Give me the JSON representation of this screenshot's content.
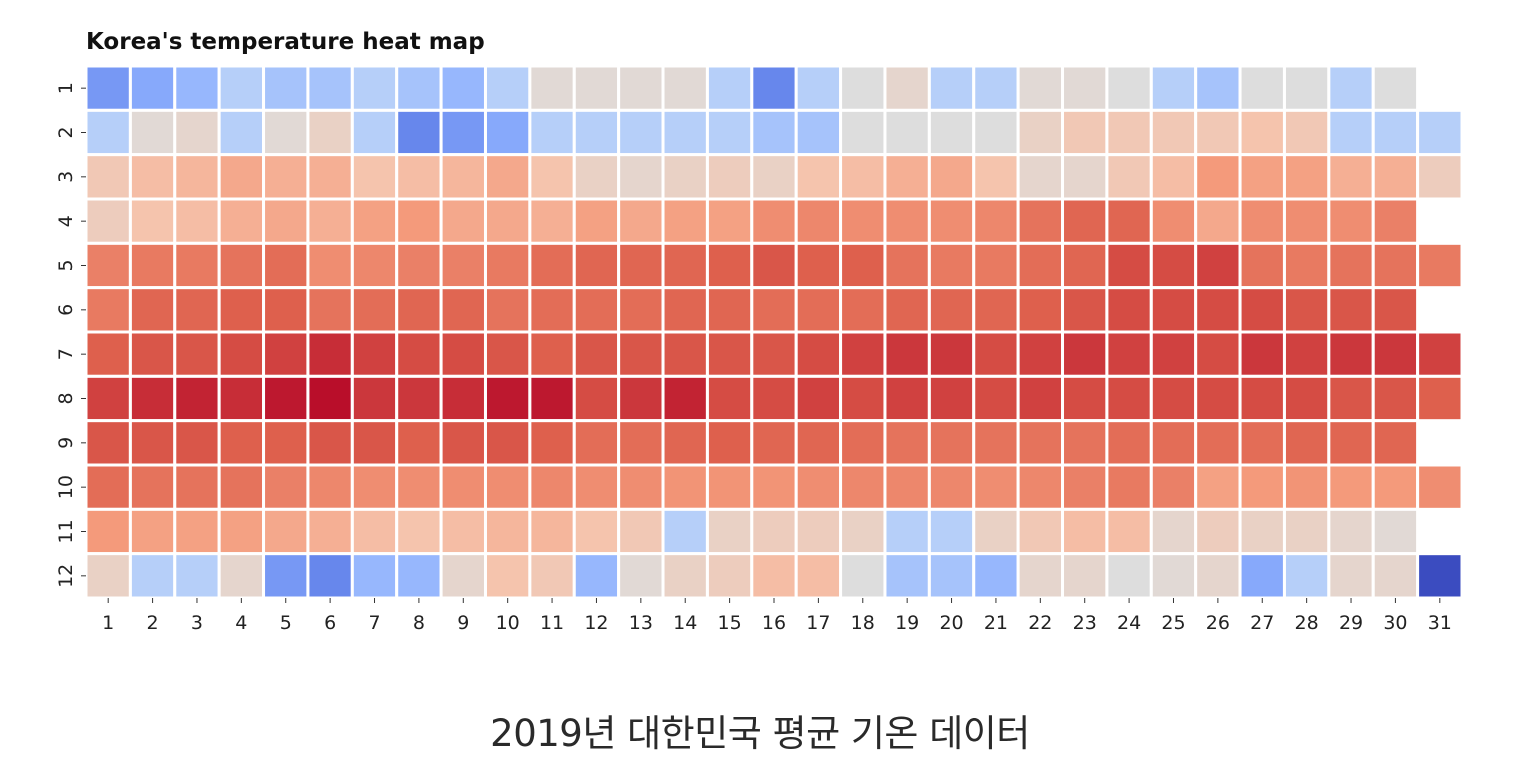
{
  "chart_data": {
    "type": "heatmap",
    "title": "Korea's temperature heat map",
    "x_categories": [
      "1",
      "2",
      "3",
      "4",
      "5",
      "6",
      "7",
      "8",
      "9",
      "10",
      "11",
      "12",
      "13",
      "14",
      "15",
      "16",
      "17",
      "18",
      "19",
      "20",
      "21",
      "22",
      "23",
      "24",
      "25",
      "26",
      "27",
      "28",
      "29",
      "30",
      "31"
    ],
    "y_categories": [
      "1",
      "2",
      "3",
      "4",
      "5",
      "6",
      "7",
      "8",
      "9",
      "10",
      "11",
      "12"
    ],
    "colormap": "coolwarm",
    "center": 0,
    "vlim": [
      -9,
      30
    ],
    "grid": true,
    "colorbar": false,
    "values": [
      [
        -5,
        -4,
        -3,
        -1,
        -2,
        -2,
        -1,
        -2,
        -3,
        -1,
        1,
        1,
        1,
        1,
        -1,
        -6,
        -1,
        0,
        2,
        -1,
        -1,
        1,
        1,
        0,
        -1,
        -2,
        0,
        0,
        -1,
        0,
        null
      ],
      [
        -1,
        1,
        2,
        -1,
        1,
        3,
        -1,
        -6,
        -5,
        -4,
        -1,
        -1,
        -1,
        -1,
        -1,
        -2,
        -2,
        0,
        0,
        0,
        0,
        3,
        5,
        5,
        5,
        5,
        6,
        5,
        -1,
        -1,
        -1
      ],
      [
        5,
        7,
        8,
        10,
        9,
        9,
        6,
        7,
        8,
        10,
        6,
        3,
        2,
        3,
        4,
        3,
        6,
        7,
        9,
        10,
        6,
        2,
        2,
        5,
        7,
        12,
        11,
        11,
        9,
        9,
        4
      ],
      [
        4,
        6,
        7,
        9,
        10,
        9,
        11,
        12,
        10,
        10,
        9,
        11,
        10,
        11,
        11,
        14,
        15,
        14,
        14,
        14,
        15,
        18,
        20,
        20,
        14,
        10,
        14,
        14,
        14,
        16,
        null
      ],
      [
        16,
        17,
        17,
        18,
        19,
        14,
        15,
        16,
        16,
        17,
        19,
        20,
        20,
        20,
        21,
        22,
        21,
        21,
        18,
        17,
        17,
        19,
        20,
        23,
        23,
        24,
        18,
        17,
        18,
        18,
        17
      ],
      [
        17,
        20,
        20,
        21,
        21,
        18,
        19,
        20,
        20,
        18,
        19,
        19,
        19,
        20,
        20,
        19,
        19,
        19,
        20,
        20,
        20,
        21,
        22,
        23,
        23,
        23,
        23,
        22,
        22,
        22,
        null
      ],
      [
        21,
        22,
        22,
        23,
        24,
        26,
        24,
        23,
        23,
        22,
        21,
        22,
        22,
        22,
        22,
        22,
        23,
        24,
        25,
        25,
        23,
        24,
        25,
        24,
        24,
        23,
        25,
        24,
        25,
        25,
        24
      ],
      [
        24,
        26,
        27,
        26,
        28,
        29,
        25,
        25,
        26,
        28,
        28,
        23,
        25,
        27,
        23,
        23,
        24,
        23,
        24,
        24,
        23,
        24,
        23,
        23,
        23,
        23,
        23,
        23,
        22,
        22,
        21
      ],
      [
        22,
        22,
        22,
        21,
        21,
        22,
        22,
        21,
        22,
        22,
        21,
        19,
        19,
        20,
        21,
        20,
        20,
        19,
        18,
        18,
        18,
        18,
        18,
        19,
        19,
        19,
        19,
        20,
        20,
        20,
        null
      ],
      [
        19,
        18,
        18,
        18,
        16,
        15,
        14,
        14,
        14,
        14,
        15,
        14,
        14,
        13,
        13,
        13,
        14,
        15,
        15,
        15,
        14,
        15,
        16,
        17,
        16,
        11,
        12,
        13,
        12,
        12,
        14
      ],
      [
        12,
        11,
        11,
        11,
        10,
        9,
        7,
        6,
        7,
        8,
        8,
        6,
        5,
        -1,
        3,
        4,
        4,
        3,
        -1,
        -1,
        3,
        5,
        7,
        7,
        2,
        4,
        3,
        3,
        2,
        1,
        null
      ],
      [
        3,
        -1,
        -1,
        2,
        -5,
        -6,
        -3,
        -3,
        2,
        6,
        5,
        -3,
        1,
        3,
        4,
        7,
        7,
        0,
        -2,
        -2,
        -3,
        2,
        2,
        0,
        1,
        2,
        -4,
        -1,
        2,
        2,
        -9
      ]
    ]
  },
  "caption": "2019년 대한민국 평균 기온 데이터"
}
